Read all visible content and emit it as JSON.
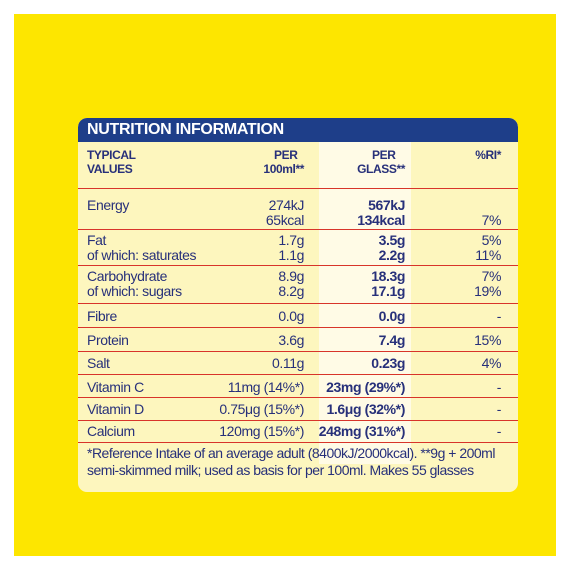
{
  "title": "NUTRITION INFORMATION",
  "headers": {
    "typical_line1": "TYPICAL",
    "typical_line2": "VALUES",
    "per100_line1": "PER",
    "per100_line2": "100ml**",
    "perglass_line1": "PER",
    "perglass_line2": "GLASS**",
    "ri": "%RI*"
  },
  "rows": {
    "energy": {
      "label": "Energy",
      "per100_kj": "274kJ",
      "per100_kcal": "65kcal",
      "glass_kj": "567kJ",
      "glass_kcal": "134kcal",
      "ri": "7%"
    },
    "fat": {
      "label": "Fat",
      "sublabel": "of which: saturates",
      "per100": "1.7g",
      "per100_sub": "1.1g",
      "glass": "3.5g",
      "glass_sub": "2.2g",
      "ri": "5%",
      "ri_sub": "11%"
    },
    "carb": {
      "label": "Carbohydrate",
      "sublabel": "of which: sugars",
      "per100": "8.9g",
      "per100_sub": "8.2g",
      "glass": "18.3g",
      "glass_sub": "17.1g",
      "ri": "7%",
      "ri_sub": "19%"
    },
    "fibre": {
      "label": "Fibre",
      "per100": "0.0g",
      "glass": "0.0g",
      "ri": "-"
    },
    "protein": {
      "label": "Protein",
      "per100": "3.6g",
      "glass": "7.4g",
      "ri": "15%"
    },
    "salt": {
      "label": "Salt",
      "per100": "0.11g",
      "glass": "0.23g",
      "ri": "4%"
    },
    "vitc": {
      "label": "Vitamin C",
      "per100": "11mg (14%*)",
      "glass": "23mg (29%*)",
      "ri": "-"
    },
    "vitd": {
      "label": "Vitamin D",
      "per100": "0.75μg (15%*)",
      "glass": "1.6μg (32%*)",
      "ri": "-"
    },
    "calcium": {
      "label": "Calcium",
      "per100": "120mg (15%*)",
      "glass": "248mg (31%*)",
      "ri": "-"
    }
  },
  "footnote_line1": "*Reference Intake of an average adult (8400kJ/2000kcal). **9g + 200ml",
  "footnote_line2": "semi-skimmed milk; used as basis for per 100ml. Makes 55 glasses",
  "colors": {
    "outer": "#fde600",
    "card": "#fdf6be",
    "header_bar": "#1e3e89",
    "text": "#27307a",
    "separator": "#d8342a"
  }
}
